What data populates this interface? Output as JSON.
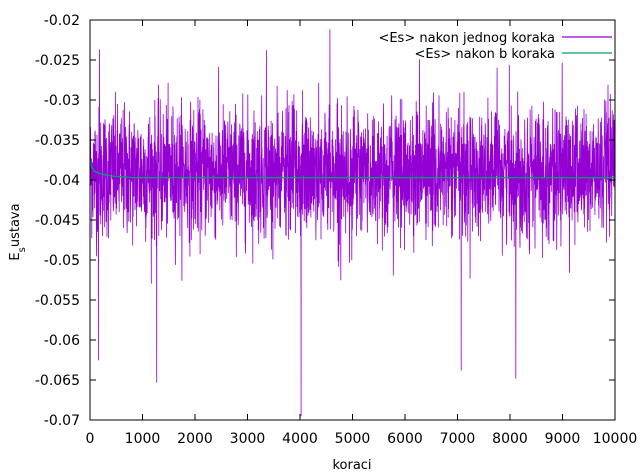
{
  "chart_data": {
    "type": "line",
    "title": "",
    "xlabel": "koraci",
    "ylabel_main": "E",
    "ylabel_sub": "s",
    "ylabel_rest": "ustava",
    "xlim": [
      0,
      10000
    ],
    "ylim": [
      -0.07,
      -0.02
    ],
    "x_ticks": [
      0,
      1000,
      2000,
      3000,
      4000,
      5000,
      6000,
      7000,
      8000,
      9000,
      10000
    ],
    "x_tick_labels": [
      "0",
      "1000",
      "2000",
      "3000",
      "4000",
      "5000",
      "6000",
      "7000",
      "8000",
      "9000",
      "10000"
    ],
    "y_ticks": [
      -0.07,
      -0.065,
      -0.06,
      -0.055,
      -0.05,
      -0.045,
      -0.04,
      -0.035,
      -0.03,
      -0.025,
      -0.02
    ],
    "y_tick_labels": [
      "-0.07",
      "-0.065",
      "-0.06",
      "-0.055",
      "-0.05",
      "-0.045",
      "-0.04",
      "-0.035",
      "-0.03",
      "-0.025",
      "-0.02"
    ],
    "grid": false,
    "legend_position": "top-right",
    "series": [
      {
        "name": "<Es> nakon jednog koraka",
        "color": "#9400d3",
        "typical_range": [
          -0.047,
          -0.031
        ],
        "notable_extremes": [
          {
            "x": 4020,
            "y": -0.0695
          },
          {
            "x": 4570,
            "y": -0.0212
          },
          {
            "x": 1270,
            "y": -0.0653
          },
          {
            "x": 160,
            "y": -0.0625
          },
          {
            "x": 8110,
            "y": -0.0648
          },
          {
            "x": 7070,
            "y": -0.0638
          },
          {
            "x": 180,
            "y": -0.0237
          },
          {
            "x": 3360,
            "y": -0.0238
          }
        ]
      },
      {
        "name": "<Es> nakon b koraka",
        "color": "#009e73",
        "x": [
          0,
          30,
          80,
          150,
          250,
          400,
          600,
          800,
          1000,
          1500,
          2000,
          3000,
          4000,
          5000,
          6000,
          7000,
          8000,
          9000,
          10000
        ],
        "y": [
          -0.0375,
          -0.0383,
          -0.0389,
          -0.0391,
          -0.0393,
          -0.0395,
          -0.0396,
          -0.0397,
          -0.0397,
          -0.0397,
          -0.0397,
          -0.0397,
          -0.0397,
          -0.0397,
          -0.0397,
          -0.0397,
          -0.0397,
          -0.0397,
          -0.0397
        ]
      }
    ]
  }
}
